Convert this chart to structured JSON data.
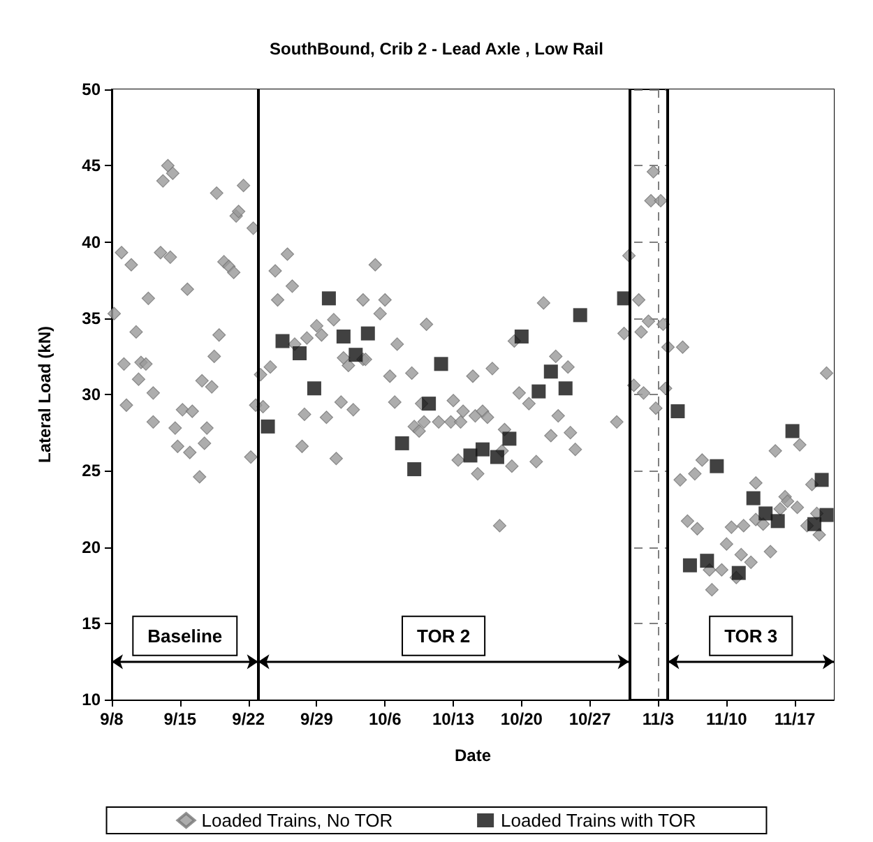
{
  "chart_data": {
    "type": "scatter",
    "title": "SouthBound, Crib 2 - Lead Axle , Low Rail",
    "xlabel": "Date",
    "ylabel": "Lateral Load (kN)",
    "xlim": [
      "--09-08",
      "--11-21"
    ],
    "xticks": [
      {
        "value": "--09-08",
        "label": "9/8"
      },
      {
        "value": "--09-15",
        "label": "9/15"
      },
      {
        "value": "--09-22",
        "label": "9/22"
      },
      {
        "value": "--09-29",
        "label": "9/29"
      },
      {
        "value": "--10-06",
        "label": "10/6"
      },
      {
        "value": "--10-13",
        "label": "10/13"
      },
      {
        "value": "--10-20",
        "label": "10/20"
      },
      {
        "value": "--10-27",
        "label": "10/27"
      },
      {
        "value": "--11-03",
        "label": "11/3"
      },
      {
        "value": "--11-10",
        "label": "11/10"
      },
      {
        "value": "--11-17",
        "label": "11/17"
      }
    ],
    "ylim": [
      10,
      50
    ],
    "yticks": [
      10,
      15,
      20,
      25,
      30,
      35,
      40,
      45,
      50
    ],
    "grid": true,
    "legend": "bottom",
    "series": [
      {
        "name": "Loaded Trains, No TOR",
        "color": "#999999",
        "marker": "diamond",
        "x": [
          "--09-08T06:00",
          "--09-09T00:00",
          "--09-10T00:00",
          "--09-09T06:00",
          "--09-09T12:00",
          "--09-10T12:00",
          "--09-10T18:00",
          "--09-11T00:00",
          "--09-11T12:00",
          "--09-11T18:00",
          "--09-12T06:00",
          "--09-12T06:00",
          "--09-13T00:00",
          "--09-13T06:00",
          "--09-13T18:00",
          "--09-14T06:00",
          "--09-14T00:00",
          "--09-14T12:00",
          "--09-14T18:00",
          "--09-15T06:00",
          "--09-15T18:00",
          "--09-16T00:00",
          "--09-16T06:00",
          "--09-17T00:00",
          "--09-17T06:00",
          "--09-17T12:00",
          "--09-17T18:00",
          "--09-18T06:00",
          "--09-18T12:00",
          "--09-18T18:00",
          "--09-19T00:00",
          "--09-19T12:00",
          "--09-20T00:00",
          "--09-20T12:00",
          "--09-20T18:00",
          "--09-21T00:00",
          "--09-21T12:00",
          "--09-22T06:00",
          "--09-22T12:00",
          "--09-22T18:00",
          "--09-23T06:00",
          "--09-23T12:00",
          "--09-24T06:00",
          "--09-24T18:00",
          "--09-25T00:00",
          "--09-26T00:00",
          "--09-26T12:00",
          "--09-26T18:00",
          "--09-27T12:00",
          "--09-27T18:00",
          "--09-28T00:00",
          "--09-29T00:00",
          "--09-29T12:00",
          "--09-30T00:00",
          "--09-30T18:00",
          "--10-01T00:00",
          "--10-01T12:00",
          "--10-01T18:00",
          "--10-02T06:00",
          "--10-02T18:00",
          "--10-03T18:00",
          "--10-04T00:00",
          "--10-05T00:00",
          "--10-03T18:00",
          "--10-06T00:00",
          "--10-05T12:00",
          "--10-07T06:00",
          "--10-06T12:00",
          "--10-07T00:00",
          "--10-08T18:00",
          "--10-09T00:00",
          "--10-09T12:00",
          "--10-10T00:00",
          "--10-09T18:00",
          "--10-10T06:00",
          "--10-11T12:00",
          "--10-12T18:00",
          "--10-13T00:00",
          "--10-13T18:00",
          "--10-14T00:00",
          "--10-13T12:00",
          "--10-15T00:00",
          "--10-15T06:00",
          "--10-16T00:00",
          "--10-16T12:00",
          "--10-15T12:00",
          "--10-17T00:00",
          "--10-17T18:00",
          "--10-18T06:00",
          "--10-18T00:00",
          "--10-19T00:00",
          "--10-19T06:00",
          "--10-19T18:00",
          "--10-20T18:00",
          "--10-21T12:00",
          "--10-22T06:00",
          "--10-23T12:00",
          "--10-24T18:00",
          "--10-23T18:00",
          "--10-23T00:00",
          "--10-25T00:00",
          "--10-25T12:00",
          "--10-29T18:00",
          "--10-30T12:00",
          "--10-31T00:00",
          "--10-31T12:00",
          "--11-01T00:00",
          "--11-01T06:00",
          "--11-01T12:00",
          "--11-02T00:00",
          "--11-02T12:00",
          "--11-02T06:00",
          "--11-03T06:00",
          "--11-02T18:00",
          "--11-03T12:00",
          "--11-03T18:00",
          "--11-04T00:00",
          "--11-05T12:00",
          "--11-05T06:00",
          "--11-06T18:00",
          "--11-07T12:00",
          "--11-06T00:00",
          "--11-07T00:00",
          "--11-10T00:00",
          "--11-10T12:00",
          "--11-11T18:00",
          "--11-11T12:00",
          "--11-12T12:00",
          "--11-13T00:00",
          "--11-13T00:00",
          "--11-13T18:00",
          "--11-14T12:00",
          "--11-15T00:00",
          "--11-16T00:00",
          "--11-15T12:00",
          "--11-16T06:00",
          "--11-17T06:00",
          "--11-17T12:00",
          "--11-18T18:00",
          "--11-19T06:00",
          "--11-18T06:00",
          "--11-19T12:00",
          "--11-08T12:00",
          "--11-08T06:00",
          "--11-09T12:00",
          "--11-11T00:00",
          "--11-20T06:00"
        ],
        "values": [
          35.3,
          39.3,
          38.5,
          32.0,
          29.3,
          34.1,
          31.0,
          32.1,
          32.0,
          36.3,
          30.1,
          28.2,
          39.3,
          44.0,
          45.0,
          44.5,
          39.0,
          27.8,
          26.6,
          29.0,
          36.9,
          26.2,
          28.9,
          24.6,
          30.9,
          26.8,
          27.8,
          30.5,
          32.5,
          43.2,
          33.9,
          38.7,
          38.4,
          38.0,
          41.7,
          42.0,
          43.7,
          25.9,
          40.9,
          29.3,
          31.3,
          29.2,
          31.8,
          38.1,
          36.2,
          39.2,
          37.1,
          33.3,
          26.6,
          28.7,
          33.7,
          34.5,
          33.9,
          28.5,
          34.9,
          25.8,
          29.5,
          32.4,
          31.9,
          29.0,
          32.3,
          32.3,
          38.5,
          36.2,
          36.2,
          35.3,
          33.3,
          31.2,
          29.5,
          31.4,
          27.9,
          27.6,
          28.2,
          29.4,
          34.6,
          28.2,
          28.2,
          29.6,
          28.2,
          28.9,
          25.7,
          31.2,
          28.6,
          28.9,
          28.5,
          24.8,
          31.7,
          21.4,
          27.7,
          26.3,
          25.3,
          33.5,
          30.1,
          29.4,
          25.6,
          36.0,
          32.5,
          31.8,
          28.6,
          27.3,
          27.5,
          26.4,
          28.2,
          34.0,
          39.1,
          30.6,
          36.2,
          34.1,
          30.1,
          34.8,
          44.6,
          42.7,
          42.7,
          29.1,
          34.6,
          30.4,
          33.1,
          33.1,
          24.4,
          24.8,
          25.7,
          21.7,
          21.2,
          20.2,
          21.3,
          21.4,
          19.5,
          19.0,
          24.2,
          21.8,
          21.5,
          19.7,
          26.3,
          23.3,
          22.5,
          23.0,
          22.6,
          26.7,
          24.1,
          22.2,
          21.4,
          20.8,
          17.2,
          18.5,
          18.5,
          18.0,
          31.4
        ]
      },
      {
        "name": "Loaded Trains with TOR",
        "color": "#111111",
        "marker": "square",
        "x": [
          "--09-24T00:00",
          "--09-25T12:00",
          "--09-27T06:00",
          "--09-28T18:00",
          "--09-30T06:00",
          "--10-01T18:00",
          "--10-03T00:00",
          "--10-04T06:00",
          "--10-07T18:00",
          "--10-09T00:00",
          "--10-10T12:00",
          "--10-11T18:00",
          "--10-14T18:00",
          "--10-16T00:00",
          "--10-17T12:00",
          "--10-18T18:00",
          "--10-20T00:00",
          "--10-21T18:00",
          "--10-23T00:00",
          "--10-24T12:00",
          "--10-26T00:00",
          "--10-30T12:00",
          "--11-05T00:00",
          "--11-06T06:00",
          "--11-08T00:00",
          "--11-09T00:00",
          "--11-11T06:00",
          "--11-12T18:00",
          "--11-14T00:00",
          "--11-15T06:00",
          "--11-16T18:00",
          "--11-19T00:00",
          "--11-19T18:00",
          "--11-20T06:00"
        ],
        "values": [
          27.9,
          33.5,
          32.7,
          30.4,
          36.3,
          33.8,
          32.6,
          34.0,
          26.8,
          25.1,
          29.4,
          32.0,
          26.0,
          26.4,
          25.9,
          27.1,
          33.8,
          30.2,
          31.5,
          30.4,
          35.2,
          36.3,
          28.9,
          18.8,
          19.1,
          25.3,
          18.3,
          23.2,
          22.2,
          21.7,
          27.6,
          21.5,
          24.4,
          22.1
        ]
      }
    ],
    "ref_lines": [
      {
        "axis": "x",
        "value": "--09-23",
        "color": "#000000"
      },
      {
        "axis": "x",
        "value": "--10-31",
        "color": "#000000"
      },
      {
        "axis": "x",
        "value": "--11-04",
        "color": "#000000"
      }
    ],
    "bands": [
      {
        "axis": "x",
        "from": "--09-08",
        "to": "--09-23",
        "label": "Baseline",
        "color": "#ffffff"
      },
      {
        "axis": "x",
        "from": "--09-23",
        "to": "--10-31",
        "label": "TOR 2",
        "color": "#ffffff"
      },
      {
        "axis": "x",
        "from": "--11-04",
        "to": "--11-21",
        "label": "TOR 3",
        "color": "#ffffff"
      }
    ]
  }
}
